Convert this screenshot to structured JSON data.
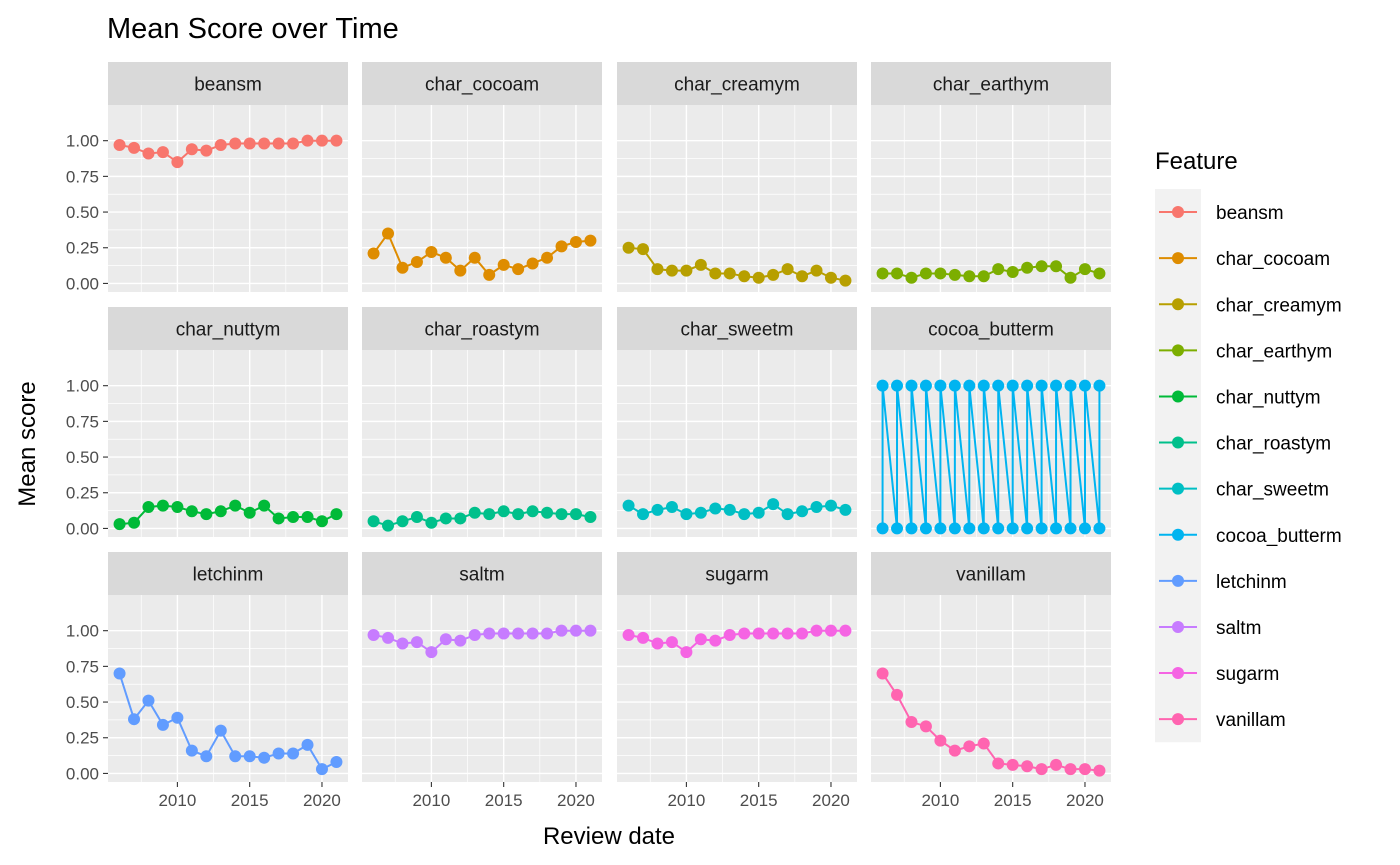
{
  "chart_data": {
    "type": "line",
    "title": "Mean Score over Time",
    "xlabel": "Review date",
    "ylabel": "Mean score",
    "legend_title": "Feature",
    "legend_position": "right",
    "grid": true,
    "xlim": [
      2005.2,
      2021.8
    ],
    "ylim": [
      -0.06,
      1.25
    ],
    "x_ticks": [
      2010,
      2015,
      2020
    ],
    "y_ticks": [
      0.0,
      0.25,
      0.5,
      0.75,
      1.0
    ],
    "y_tick_labels": [
      "0.00",
      "0.25",
      "0.50",
      "0.75",
      "1.00"
    ],
    "x": [
      2006,
      2007,
      2008,
      2009,
      2010,
      2011,
      2012,
      2013,
      2014,
      2015,
      2016,
      2017,
      2018,
      2019,
      2020,
      2021
    ],
    "series": [
      {
        "name": "beansm",
        "color": "#F8766D",
        "values": [
          0.97,
          0.95,
          0.91,
          0.92,
          0.85,
          0.94,
          0.93,
          0.97,
          0.98,
          0.98,
          0.98,
          0.98,
          0.98,
          1.0,
          1.0,
          1.0
        ]
      },
      {
        "name": "char_cocoam",
        "color": "#DE8C00",
        "values": [
          0.21,
          0.35,
          0.11,
          0.15,
          0.22,
          0.18,
          0.09,
          0.18,
          0.06,
          0.13,
          0.1,
          0.14,
          0.18,
          0.26,
          0.29,
          0.3
        ]
      },
      {
        "name": "char_creamym",
        "color": "#B79F00",
        "values": [
          0.25,
          0.24,
          0.1,
          0.09,
          0.09,
          0.13,
          0.07,
          0.07,
          0.05,
          0.04,
          0.06,
          0.1,
          0.05,
          0.09,
          0.04,
          0.02
        ]
      },
      {
        "name": "char_earthym",
        "color": "#7CAE00",
        "values": [
          0.07,
          0.07,
          0.04,
          0.07,
          0.07,
          0.06,
          0.05,
          0.05,
          0.1,
          0.08,
          0.11,
          0.12,
          0.12,
          0.04,
          0.1,
          0.07
        ]
      },
      {
        "name": "char_nuttym",
        "color": "#00BA38",
        "values": [
          0.03,
          0.04,
          0.15,
          0.16,
          0.15,
          0.12,
          0.1,
          0.12,
          0.16,
          0.11,
          0.16,
          0.07,
          0.08,
          0.08,
          0.05,
          0.1
        ]
      },
      {
        "name": "char_roastym",
        "color": "#00C08B",
        "values": [
          0.05,
          0.02,
          0.05,
          0.08,
          0.04,
          0.07,
          0.07,
          0.11,
          0.1,
          0.12,
          0.1,
          0.12,
          0.11,
          0.1,
          0.1,
          0.08
        ]
      },
      {
        "name": "char_sweetm",
        "color": "#00BFC4",
        "values": [
          0.16,
          0.1,
          0.13,
          0.15,
          0.1,
          0.11,
          0.14,
          0.13,
          0.1,
          0.11,
          0.17,
          0.1,
          0.12,
          0.15,
          0.16,
          0.13
        ]
      },
      {
        "name": "cocoa_butterm",
        "color": "#00B4F0",
        "values": [
          [
            0,
            1
          ],
          [
            0,
            1
          ],
          [
            0,
            1
          ],
          [
            0,
            1
          ],
          [
            0,
            1
          ],
          [
            0,
            1
          ],
          [
            0,
            1
          ],
          [
            0,
            1
          ],
          [
            0,
            1
          ],
          [
            0,
            1
          ],
          [
            0,
            1
          ],
          [
            0,
            1
          ],
          [
            0,
            1
          ],
          [
            0,
            1
          ],
          [
            0,
            1
          ],
          [
            0,
            1
          ]
        ]
      },
      {
        "name": "letchinm",
        "color": "#619CFF",
        "values": [
          0.7,
          0.38,
          0.51,
          0.34,
          0.39,
          0.16,
          0.12,
          0.3,
          0.12,
          0.12,
          0.11,
          0.14,
          0.14,
          0.2,
          0.03,
          0.08
        ]
      },
      {
        "name": "saltm",
        "color": "#C77CFF",
        "values": [
          0.97,
          0.95,
          0.91,
          0.92,
          0.85,
          0.94,
          0.93,
          0.97,
          0.98,
          0.98,
          0.98,
          0.98,
          0.98,
          1.0,
          1.0,
          1.0
        ]
      },
      {
        "name": "sugarm",
        "color": "#F564E3",
        "values": [
          0.97,
          0.95,
          0.91,
          0.92,
          0.85,
          0.94,
          0.93,
          0.97,
          0.98,
          0.98,
          0.98,
          0.98,
          0.98,
          1.0,
          1.0,
          1.0
        ]
      },
      {
        "name": "vanillam",
        "color": "#FF64B0",
        "values": [
          0.7,
          0.55,
          0.36,
          0.33,
          0.23,
          0.16,
          0.19,
          0.21,
          0.07,
          0.06,
          0.05,
          0.03,
          0.06,
          0.03,
          0.03,
          0.02
        ]
      }
    ]
  }
}
